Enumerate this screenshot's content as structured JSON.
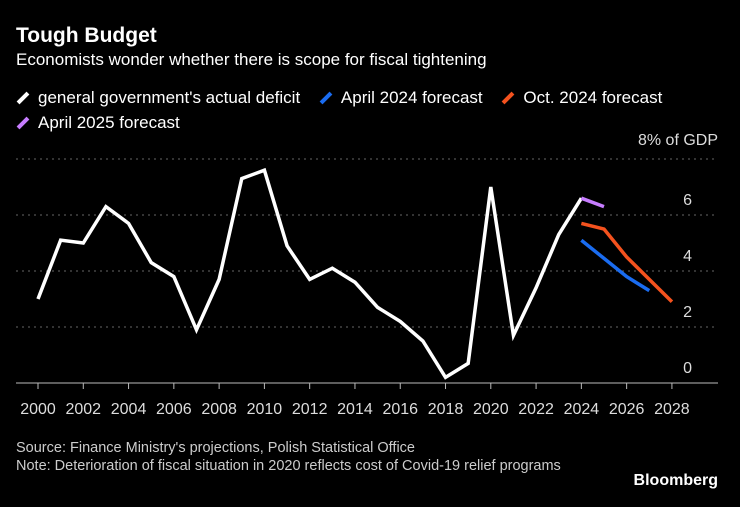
{
  "title": "Tough Budget",
  "subtitle": "Economists wonder whether there is scope for fiscal tightening",
  "source": "Source: Finance Ministry's projections, Polish Statistical Office",
  "note": "Note: Deterioration of fiscal situation in 2020 reflects cost of Covid-19 relief programs",
  "logo": "Bloomberg",
  "chart_data": {
    "type": "line",
    "unit_label": "8% of GDP",
    "ylim": [
      0,
      8
    ],
    "yticks": [
      "0",
      "2",
      "4",
      "6"
    ],
    "xlim": [
      2000,
      2028
    ],
    "xticks": [
      "2000",
      "2002",
      "2004",
      "2006",
      "2008",
      "2010",
      "2012",
      "2014",
      "2016",
      "2018",
      "2020",
      "2022",
      "2024",
      "2026",
      "2028"
    ],
    "grid": true,
    "legend_position": "top-left",
    "series": [
      {
        "name": "general government's actual deficit",
        "color": "#ffffff",
        "x": [
          2000,
          2001,
          2002,
          2003,
          2004,
          2005,
          2006,
          2007,
          2008,
          2009,
          2010,
          2011,
          2012,
          2013,
          2014,
          2015,
          2016,
          2017,
          2018,
          2019,
          2020,
          2021,
          2022,
          2023,
          2024
        ],
        "y": [
          3.0,
          5.1,
          5.0,
          6.3,
          5.7,
          4.3,
          3.8,
          1.9,
          3.7,
          7.3,
          7.6,
          4.9,
          3.7,
          4.1,
          3.6,
          2.7,
          2.2,
          1.5,
          0.2,
          0.7,
          7.0,
          1.7,
          3.4,
          5.3,
          6.6
        ]
      },
      {
        "name": "April 2024 forecast",
        "color": "#1a6cf0",
        "x": [
          2024,
          2025,
          2026,
          2027
        ],
        "y": [
          5.1,
          4.45,
          3.8,
          3.3
        ]
      },
      {
        "name": "Oct. 2024 forecast",
        "color": "#f4521e",
        "x": [
          2024,
          2025,
          2026,
          2027,
          2028
        ],
        "y": [
          5.7,
          5.5,
          4.5,
          3.7,
          2.9
        ]
      },
      {
        "name": "April 2025 forecast",
        "color": "#c77dff",
        "x": [
          2024,
          2025
        ],
        "y": [
          6.6,
          6.3
        ]
      }
    ]
  }
}
